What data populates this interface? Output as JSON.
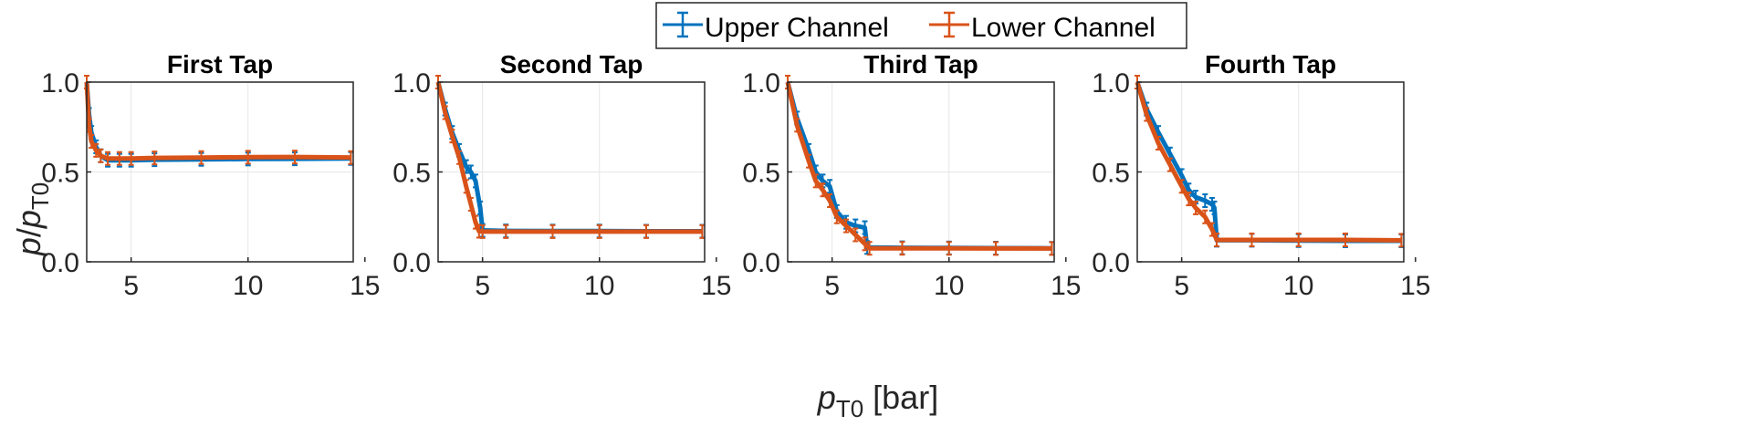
{
  "colors": {
    "upper": "#0072BD",
    "lower": "#D95319",
    "axis": "#262626",
    "grid": "#e6e6e6"
  },
  "ylabel": {
    "p": "p",
    "slash": "/",
    "p2": "p",
    "sub": "T0"
  },
  "xlabel": {
    "p": "p",
    "sub": "T0",
    "unit": " [bar]"
  },
  "legend": [
    "Upper Channel",
    "Lower Channel"
  ],
  "chart_data": [
    {
      "type": "line",
      "title": "First Tap",
      "xlim": [
        3.1,
        14.5
      ],
      "ylim": [
        0,
        1
      ],
      "xticks": [
        5,
        10,
        15
      ],
      "yticks": [
        0.0,
        0.5,
        1.0
      ],
      "ytick_labels": [
        "0.0",
        "0.5",
        "1.0"
      ],
      "grid": true,
      "series": [
        {
          "name": "Upper Channel",
          "x": [
            3.1,
            3.2,
            3.3,
            3.5,
            3.7,
            4.0,
            4.5,
            5,
            6,
            8,
            10,
            12,
            14.4
          ],
          "y": [
            1.0,
            0.82,
            0.72,
            0.64,
            0.59,
            0.565,
            0.565,
            0.565,
            0.568,
            0.57,
            0.572,
            0.573,
            0.575
          ]
        },
        {
          "name": "Lower Channel",
          "x": [
            3.1,
            3.2,
            3.3,
            3.5,
            3.7,
            4.0,
            4.5,
            5,
            6,
            8,
            10,
            12,
            14.4
          ],
          "y": [
            1.0,
            0.76,
            0.67,
            0.62,
            0.59,
            0.575,
            0.575,
            0.575,
            0.578,
            0.58,
            0.582,
            0.583,
            0.58
          ]
        }
      ]
    },
    {
      "type": "line",
      "title": "Second Tap",
      "xlim": [
        3.1,
        14.5
      ],
      "ylim": [
        0,
        1
      ],
      "xticks": [
        5,
        10,
        15
      ],
      "yticks": [
        0.0,
        0.5,
        1.0
      ],
      "ytick_labels": [
        "0.0",
        "0.5",
        "1.0"
      ],
      "grid": true,
      "series": [
        {
          "name": "Upper Channel",
          "x": [
            3.1,
            3.4,
            3.7,
            4.0,
            4.3,
            4.5,
            4.7,
            4.9,
            5.0,
            6,
            8,
            10,
            12,
            14.4
          ],
          "y": [
            1.0,
            0.85,
            0.72,
            0.62,
            0.53,
            0.5,
            0.45,
            0.3,
            0.175,
            0.172,
            0.171,
            0.171,
            0.17,
            0.17
          ]
        },
        {
          "name": "Lower Channel",
          "x": [
            3.1,
            3.4,
            3.7,
            4.0,
            4.3,
            4.5,
            4.7,
            4.85,
            5.0,
            6,
            8,
            10,
            12,
            14.4
          ],
          "y": [
            1.0,
            0.83,
            0.7,
            0.58,
            0.42,
            0.32,
            0.22,
            0.17,
            0.168,
            0.168,
            0.168,
            0.168,
            0.168,
            0.168
          ]
        }
      ]
    },
    {
      "type": "line",
      "title": "Third Tap",
      "xlim": [
        3.1,
        14.5
      ],
      "ylim": [
        0,
        1
      ],
      "xticks": [
        5,
        10,
        15
      ],
      "yticks": [
        0.0,
        0.5,
        1.0
      ],
      "ytick_labels": [
        "0.0",
        "0.5",
        "1.0"
      ],
      "grid": true,
      "series": [
        {
          "name": "Upper Channel",
          "x": [
            3.1,
            3.5,
            4.0,
            4.3,
            4.6,
            4.9,
            5.2,
            5.6,
            6.0,
            6.4,
            6.5,
            8,
            10,
            12,
            14.4
          ],
          "y": [
            1.0,
            0.8,
            0.62,
            0.5,
            0.45,
            0.42,
            0.28,
            0.22,
            0.2,
            0.19,
            0.08,
            0.078,
            0.077,
            0.076,
            0.075
          ]
        },
        {
          "name": "Lower Channel",
          "x": [
            3.1,
            3.5,
            4.0,
            4.3,
            4.6,
            4.9,
            5.2,
            5.6,
            6.0,
            6.4,
            6.6,
            8,
            10,
            12,
            14.4
          ],
          "y": [
            1.0,
            0.76,
            0.56,
            0.45,
            0.4,
            0.34,
            0.25,
            0.2,
            0.15,
            0.1,
            0.075,
            0.075,
            0.075,
            0.074,
            0.074
          ]
        }
      ]
    },
    {
      "type": "line",
      "title": "Fourth Tap",
      "xlim": [
        3.1,
        14.5
      ],
      "ylim": [
        0,
        1
      ],
      "xticks": [
        5,
        10,
        15
      ],
      "yticks": [
        0.0,
        0.5,
        1.0
      ],
      "ytick_labels": [
        "0.0",
        "0.5",
        "1.0"
      ],
      "grid": true,
      "series": [
        {
          "name": "Upper Channel",
          "x": [
            3.1,
            3.5,
            4.0,
            4.5,
            5.0,
            5.3,
            5.6,
            6.0,
            6.3,
            6.4,
            6.5,
            8,
            10,
            12,
            14.4
          ],
          "y": [
            1.0,
            0.85,
            0.72,
            0.6,
            0.48,
            0.4,
            0.36,
            0.34,
            0.32,
            0.3,
            0.12,
            0.12,
            0.118,
            0.117,
            0.117
          ]
        },
        {
          "name": "Lower Channel",
          "x": [
            3.1,
            3.5,
            4.0,
            4.5,
            5.0,
            5.3,
            5.6,
            6.0,
            6.3,
            6.5,
            8,
            10,
            12,
            14.4
          ],
          "y": [
            1.0,
            0.82,
            0.66,
            0.54,
            0.42,
            0.35,
            0.3,
            0.25,
            0.18,
            0.122,
            0.122,
            0.122,
            0.122,
            0.12
          ]
        }
      ]
    }
  ]
}
